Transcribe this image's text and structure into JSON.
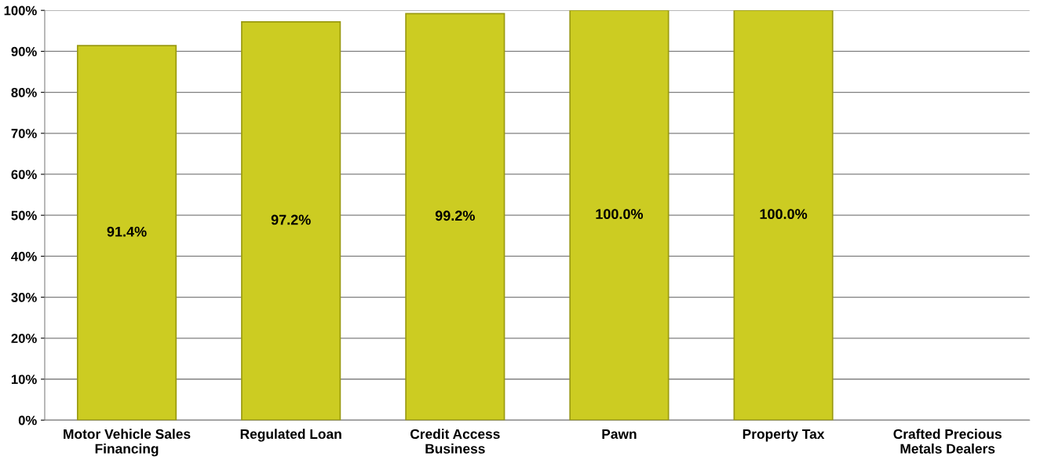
{
  "chart_data": {
    "type": "bar",
    "categories": [
      "Motor Vehicle Sales Financing",
      "Regulated Loan",
      "Credit Access Business",
      "Pawn",
      "Property Tax",
      "Crafted Precious Metals Dealers"
    ],
    "values": [
      91.4,
      97.2,
      99.2,
      100.0,
      100.0,
      null
    ],
    "value_labels": [
      "91.4%",
      "97.2%",
      "99.2%",
      "100.0%",
      "100.0%",
      null
    ],
    "color": "#cccc22",
    "ylim": [
      0,
      100
    ],
    "yticks": [
      {
        "value": 0,
        "label": "0%"
      },
      {
        "value": 10,
        "label": "10%"
      },
      {
        "value": 20,
        "label": "20%"
      },
      {
        "value": 30,
        "label": "30%"
      },
      {
        "value": 40,
        "label": "40%"
      },
      {
        "value": 50,
        "label": "50%"
      },
      {
        "value": 60,
        "label": "60%"
      },
      {
        "value": 70,
        "label": "70%"
      },
      {
        "value": 80,
        "label": "80%"
      },
      {
        "value": 90,
        "label": "90%"
      },
      {
        "value": 100,
        "label": "100%"
      }
    ],
    "grid": "y",
    "legend": false
  }
}
